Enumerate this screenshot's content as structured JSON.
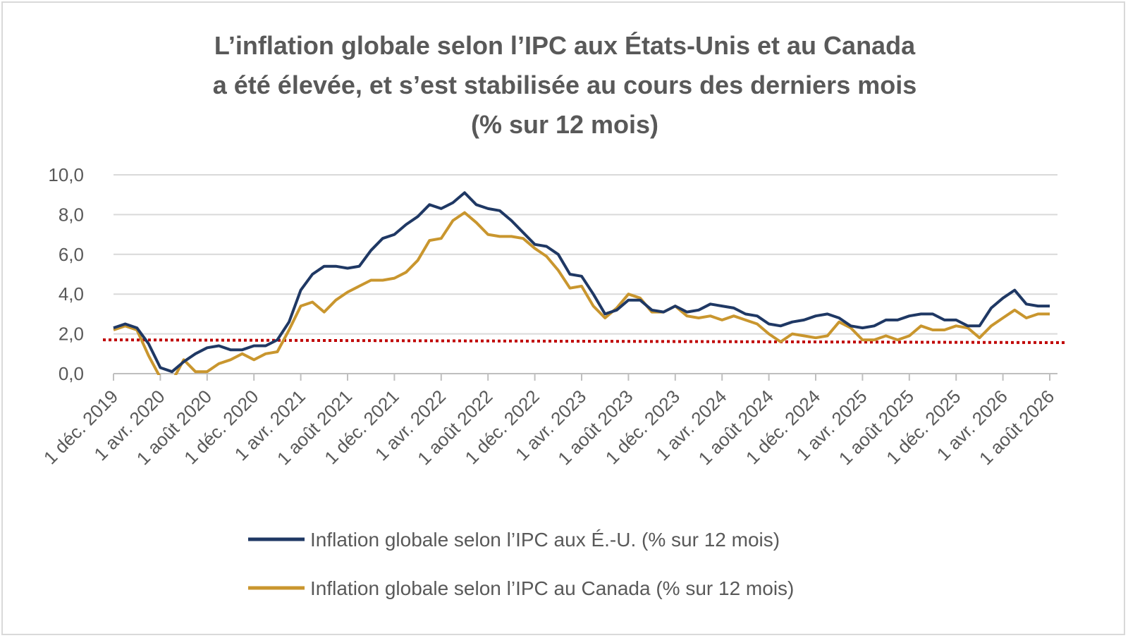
{
  "chart_data": {
    "type": "line",
    "title_lines": [
      "L’inflation globale selon l’IPC aux États-Unis et au Canada",
      "a été élevée, et s’est stabilisée au cours des derniers mois",
      "(% sur 12 mois)"
    ],
    "ylim": [
      0,
      10
    ],
    "y_ticks": [
      "0,0",
      "2,0",
      "4,0",
      "6,0",
      "8,0",
      "10,0"
    ],
    "y_tick_values": [
      0,
      2,
      4,
      6,
      8,
      10
    ],
    "grid": true,
    "x_tick_labels": [
      "1 déc. 2019",
      "1 avr. 2020",
      "1 août 2020",
      "1 déc. 2020",
      "1 avr. 2021",
      "1 août 2021",
      "1 déc. 2021",
      "1 avr. 2022",
      "1 août 2022",
      "1 déc. 2022",
      "1 avr. 2023",
      "1 août 2023",
      "1 déc. 2023",
      "1 avr. 2024",
      "1 août 2024",
      "1 déc. 2024",
      "1 avr. 2025",
      "1 août 2025",
      "1 déc. 2025",
      "1 avr. 2026",
      "1 août 2026"
    ],
    "x_tick_months": [
      0,
      4,
      8,
      12,
      16,
      20,
      24,
      28,
      32,
      36,
      40,
      44,
      48,
      52,
      56,
      60,
      64,
      68,
      72,
      76,
      80
    ],
    "n_points": 81,
    "legend_position": "bottom",
    "series": [
      {
        "name": "Inflation globale selon l’IPC aux É.-U. (% sur 12 mois)",
        "color": "#1f3864",
        "values": [
          2.3,
          2.5,
          2.3,
          1.5,
          0.3,
          0.1,
          0.6,
          1.0,
          1.3,
          1.4,
          1.2,
          1.2,
          1.4,
          1.4,
          1.7,
          2.6,
          4.2,
          5.0,
          5.4,
          5.4,
          5.3,
          5.4,
          6.2,
          6.8,
          7.0,
          7.5,
          7.9,
          8.5,
          8.3,
          8.6,
          9.1,
          8.5,
          8.3,
          8.2,
          7.7,
          7.1,
          6.5,
          6.4,
          6.0,
          5.0,
          4.9,
          4.0,
          3.0,
          3.2,
          3.7,
          3.7,
          3.2,
          3.1,
          3.4,
          3.1,
          3.2,
          3.5,
          3.4,
          3.3,
          3.0,
          2.9,
          2.5,
          2.4,
          2.6,
          2.7,
          2.9,
          3.0,
          2.8,
          2.4,
          2.3,
          2.4,
          2.7,
          2.7,
          2.9,
          3.0,
          3.0,
          2.7,
          2.7,
          2.4,
          2.4,
          3.3,
          3.8,
          4.2,
          3.5,
          3.4,
          3.4
        ]
      },
      {
        "name": "Inflation globale selon l’IPC au Canada (% sur 12 mois)",
        "color": "#c9962e",
        "values": [
          2.2,
          2.4,
          2.2,
          0.9,
          -0.2,
          -0.4,
          0.7,
          0.1,
          0.1,
          0.5,
          0.7,
          1.0,
          0.7,
          1.0,
          1.1,
          2.2,
          3.4,
          3.6,
          3.1,
          3.7,
          4.1,
          4.4,
          4.7,
          4.7,
          4.8,
          5.1,
          5.7,
          6.7,
          6.8,
          7.7,
          8.1,
          7.6,
          7.0,
          6.9,
          6.9,
          6.8,
          6.3,
          5.9,
          5.2,
          4.3,
          4.4,
          3.4,
          2.8,
          3.3,
          4.0,
          3.8,
          3.1,
          3.1,
          3.4,
          2.9,
          2.8,
          2.9,
          2.7,
          2.9,
          2.7,
          2.5,
          2.0,
          1.6,
          2.0,
          1.9,
          1.8,
          1.9,
          2.6,
          2.3,
          1.7,
          1.7,
          1.9,
          1.7,
          1.9,
          2.4,
          2.2,
          2.2,
          2.4,
          2.3,
          1.8,
          2.4,
          2.8,
          3.2,
          2.8,
          3.0,
          3.0
        ]
      }
    ],
    "target_line": {
      "value": 1.7,
      "color": "#c00000",
      "style": "dotted"
    }
  }
}
